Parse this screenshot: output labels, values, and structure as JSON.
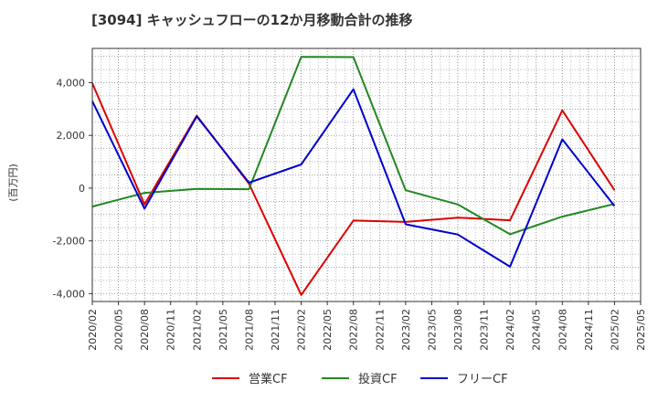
{
  "chart_data": {
    "type": "line",
    "title": "[3094]  キャッシュフローの12か月移動合計の推移",
    "ylabel": "(百万円)",
    "xlabel": "",
    "ylim": [
      -4300,
      5300
    ],
    "yticks": [
      -4000,
      -2000,
      0,
      2000,
      4000
    ],
    "ytick_labels": [
      "-4,000",
      "-2,000",
      "0",
      "2,000",
      "4,000"
    ],
    "x_tick_labels": [
      "2020/02",
      "2020/05",
      "2020/08",
      "2020/11",
      "2021/02",
      "2021/05",
      "2021/08",
      "2021/11",
      "2022/02",
      "2022/05",
      "2022/08",
      "2022/11",
      "2023/02",
      "2023/05",
      "2023/08",
      "2023/11",
      "2024/02",
      "2024/05",
      "2024/08",
      "2024/11",
      "2025/02",
      "2025/05"
    ],
    "grid": true,
    "legend_position": "bottom",
    "series": [
      {
        "name": "営業CF",
        "color": "#dd0000",
        "points": [
          [
            0,
            3980
          ],
          [
            2,
            -620
          ],
          [
            4,
            2750
          ],
          [
            6,
            170
          ],
          [
            8,
            -4050
          ],
          [
            10,
            -1230
          ],
          [
            12,
            -1280
          ],
          [
            14,
            -1120
          ],
          [
            16,
            -1220
          ],
          [
            18,
            2950
          ],
          [
            20,
            -80
          ]
        ]
      },
      {
        "name": "投資CF",
        "color": "#228822",
        "points": [
          [
            0,
            -700
          ],
          [
            2,
            -180
          ],
          [
            4,
            -30
          ],
          [
            6,
            -40
          ],
          [
            8,
            4980
          ],
          [
            10,
            4970
          ],
          [
            12,
            -80
          ],
          [
            14,
            -620
          ],
          [
            16,
            -1750
          ],
          [
            18,
            -1080
          ],
          [
            20,
            -600
          ]
        ]
      },
      {
        "name": "フリーCF",
        "color": "#0000cc",
        "points": [
          [
            0,
            3300
          ],
          [
            2,
            -780
          ],
          [
            4,
            2720
          ],
          [
            6,
            210
          ],
          [
            8,
            900
          ],
          [
            10,
            3750
          ],
          [
            12,
            -1370
          ],
          [
            14,
            -1760
          ],
          [
            16,
            -2980
          ],
          [
            18,
            1850
          ],
          [
            20,
            -680
          ]
        ]
      }
    ]
  }
}
